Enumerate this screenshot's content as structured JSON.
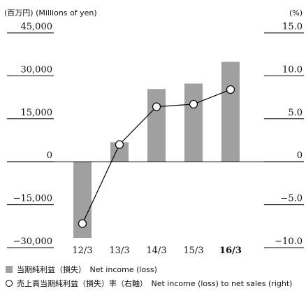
{
  "chart_data": {
    "type": "bar-line",
    "y_axis_label": "(百万円) (Millions of yen)",
    "y2_axis_label": "(%)",
    "categories": [
      "12/3",
      "13/3",
      "14/3",
      "15/3",
      "16/3"
    ],
    "series": [
      {
        "name": "当期純利益（損失）　Net income (loss)",
        "type": "bar",
        "color": "#a0a0a0",
        "values": [
          -26600,
          6800,
          25400,
          27300,
          34900
        ]
      },
      {
        "name": "売上高当期純利益（損失）率（右軸）　Net income (loss) to net sales (right)",
        "type": "line",
        "axis": "y2",
        "color": "#000000",
        "values": [
          -7.2,
          2.0,
          6.4,
          6.7,
          8.4
        ]
      }
    ],
    "ylim": [
      -30000,
      45000
    ],
    "yticks": [
      {
        "value": -30000,
        "label": "−30,000"
      },
      {
        "value": -15000,
        "label": "−15,000"
      },
      0,
      {
        "value": 15000,
        "label": "15,000"
      },
      {
        "value": 30000,
        "label": "30,000"
      },
      {
        "value": 45000,
        "label": "45,000"
      }
    ],
    "y2lim": [
      -10,
      15
    ],
    "y2ticks": [
      {
        "value": -10,
        "label": "−10.0"
      },
      {
        "value": -5,
        "label": "−5.0"
      },
      0,
      {
        "value": 5,
        "label": "5.0"
      },
      {
        "value": 10,
        "label": "10.0"
      },
      {
        "value": 15,
        "label": "15.0"
      }
    ]
  }
}
